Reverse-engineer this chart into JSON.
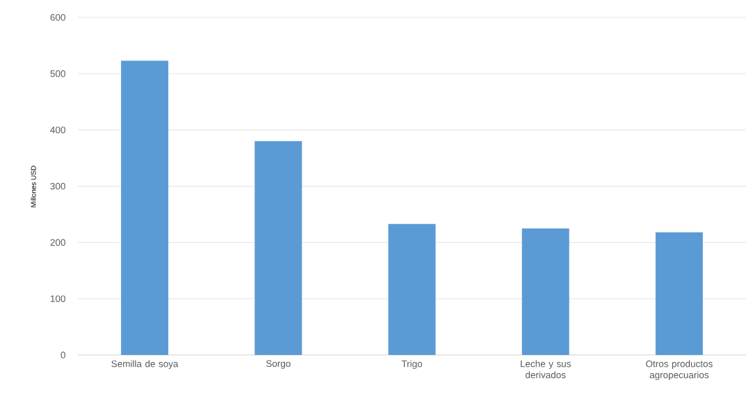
{
  "chart_data": {
    "type": "bar",
    "ylabel": "Millones USD",
    "categories": [
      "Semilla de soya",
      "Sorgo",
      "Trigo",
      "Leche y sus derivados",
      "Otros productos agropecuarios"
    ],
    "values": [
      523,
      380,
      233,
      225,
      218
    ],
    "color": "#5b9bd5",
    "ylim": [
      0,
      600
    ],
    "yticks": [
      0,
      100,
      200,
      300,
      400,
      500,
      600
    ],
    "grid": "y"
  }
}
